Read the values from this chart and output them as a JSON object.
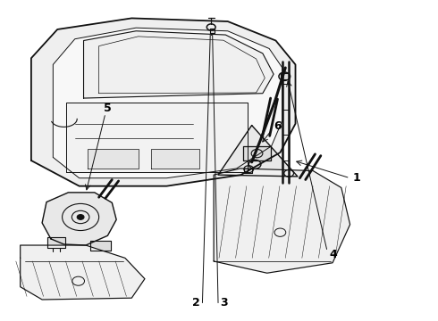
{
  "bg_color": "#ffffff",
  "line_color": "#111111",
  "label_color": "#000000",
  "figsize": [
    4.9,
    3.6
  ],
  "dpi": 100
}
